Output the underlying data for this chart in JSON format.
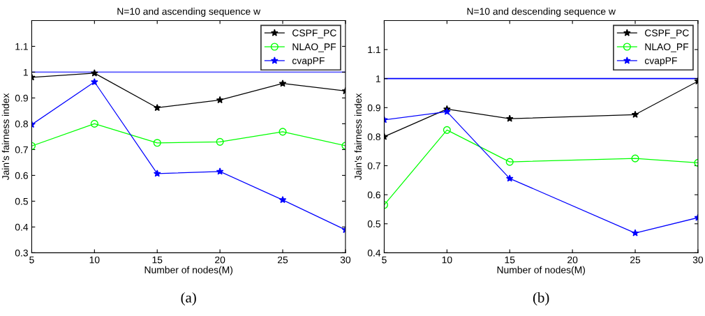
{
  "chart_data": [
    {
      "type": "line",
      "title": "N=10 and ascending sequence w",
      "xlabel": "Number of nodes(M)",
      "ylabel": "Jain's fairness index",
      "annotations": [
        "(a)"
      ],
      "x": [
        5,
        10,
        15,
        20,
        25,
        30
      ],
      "xlim": [
        5,
        30
      ],
      "xticks": [
        5,
        10,
        15,
        20,
        25,
        30
      ],
      "ylim": [
        0.3,
        1.2
      ],
      "yticks": [
        0.3,
        0.4,
        0.5,
        0.6,
        0.7,
        0.8,
        0.9,
        1,
        1.1
      ],
      "grid": false,
      "legend": "top right",
      "ref_lines": [
        {
          "axis": "y",
          "value": 1,
          "label": null,
          "color": "#5a5aff"
        }
      ],
      "series": [
        {
          "name": "CSPF_PC",
          "color": "#000000",
          "marker": "star",
          "values": [
            0.98,
            0.996,
            0.862,
            0.892,
            0.956,
            0.927
          ]
        },
        {
          "name": "NLAO_PF",
          "color": "#00ff00",
          "marker": "circle",
          "values": [
            0.714,
            0.8,
            0.726,
            0.73,
            0.769,
            0.715
          ]
        },
        {
          "name": "cvapPF",
          "color": "#0000ff",
          "marker": "star",
          "values": [
            0.797,
            0.962,
            0.607,
            0.615,
            0.505,
            0.389
          ]
        }
      ]
    },
    {
      "type": "line",
      "title": "N=10 and descending sequence w",
      "xlabel": "Number of nodes(M)",
      "ylabel": "Jain's fairness index",
      "annotations": [
        "(b)"
      ],
      "x": [
        5,
        10,
        15,
        25,
        30
      ],
      "xlim": [
        5,
        30
      ],
      "xticks": [
        5,
        10,
        15,
        20,
        25,
        30
      ],
      "ylim": [
        0.4,
        1.2
      ],
      "yticks": [
        0.4,
        0.5,
        0.6,
        0.7,
        0.8,
        0.9,
        1,
        1.1
      ],
      "grid": false,
      "legend": "top right",
      "ref_lines": [
        {
          "axis": "y",
          "value": 1,
          "label": null,
          "color": "#0000ff"
        }
      ],
      "series": [
        {
          "name": "CSPF_PC",
          "color": "#000000",
          "marker": "star",
          "values": [
            0.8,
            0.895,
            0.862,
            0.876,
            0.991
          ]
        },
        {
          "name": "NLAO_PF",
          "color": "#00ff00",
          "marker": "circle",
          "values": [
            0.565,
            0.823,
            0.713,
            0.725,
            0.71
          ]
        },
        {
          "name": "cvapPF",
          "color": "#0000ff",
          "marker": "star",
          "values": [
            0.858,
            0.886,
            0.656,
            0.468,
            0.521
          ]
        }
      ]
    }
  ]
}
